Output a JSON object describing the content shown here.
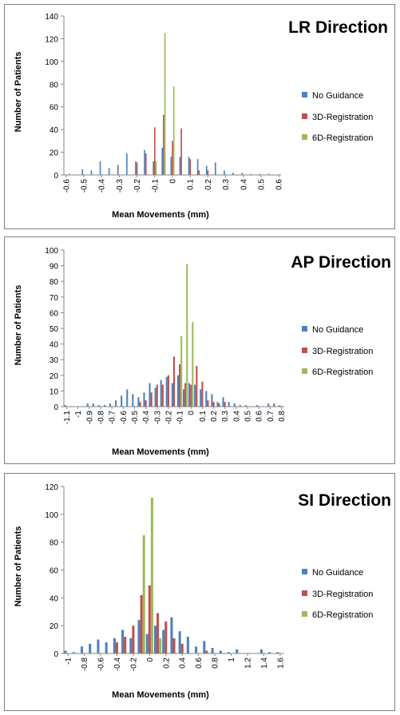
{
  "colors": {
    "no_guidance": "#4f81bd",
    "reg3d": "#c0504d",
    "reg6d": "#9bbb59",
    "axis": "#868686"
  },
  "chart_data": [
    {
      "type": "bar",
      "title": "LR Direction",
      "xlabel": "Mean Movements (mm)",
      "ylabel": "Number of Patients",
      "ylim": [
        0,
        140
      ],
      "yticks": [
        "0",
        "20",
        "40",
        "60",
        "80",
        "100",
        "120",
        "140"
      ],
      "legend_position": "right",
      "x_step": 0.025,
      "categories": [
        "-0.6",
        "-0.575",
        "-0.55",
        "-0.525",
        "-0.5",
        "-0.475",
        "-0.45",
        "-0.425",
        "-0.4",
        "-0.375",
        "-0.35",
        "-0.325",
        "-0.3",
        "-0.275",
        "-0.25",
        "-0.225",
        "-0.2",
        "-0.175",
        "-0.15",
        "-0.125",
        "-0.1",
        "-0.075",
        "-0.05",
        "-0.025",
        "0",
        "0.025",
        "0.05",
        "0.075",
        "0.1",
        "0.125",
        "0.15",
        "0.175",
        "0.2",
        "0.225",
        "0.25",
        "0.275",
        "0.3",
        "0.325",
        "0.35",
        "0.375",
        "0.4",
        "0.425",
        "0.45",
        "0.475",
        "0.5",
        "0.525",
        "0.55",
        "0.575",
        "0.6"
      ],
      "xtick_labels": [
        {
          "i": 0,
          "text": "-0.6"
        },
        {
          "i": 4,
          "text": "-0.5"
        },
        {
          "i": 8,
          "text": "-0.4"
        },
        {
          "i": 12,
          "text": "-0.3"
        },
        {
          "i": 16,
          "text": "-0.2"
        },
        {
          "i": 20,
          "text": "-0.1"
        },
        {
          "i": 24,
          "text": "0"
        },
        {
          "i": 28,
          "text": "0.1"
        },
        {
          "i": 32,
          "text": "0.2"
        },
        {
          "i": 36,
          "text": "0.3"
        },
        {
          "i": 40,
          "text": "0.4"
        },
        {
          "i": 44,
          "text": "0.5"
        },
        {
          "i": 48,
          "text": "0.6"
        }
      ],
      "series": [
        {
          "name": "No Guidance",
          "values": [
            0,
            1,
            0,
            0,
            5,
            0,
            4,
            0,
            12,
            0,
            6,
            0,
            9,
            0,
            19,
            0,
            12,
            0,
            22,
            0,
            12,
            0,
            24,
            0,
            16,
            0,
            16,
            0,
            16,
            0,
            14,
            0,
            8,
            0,
            11,
            0,
            4,
            0,
            2,
            0,
            2,
            0,
            1,
            0,
            1,
            0,
            1,
            0,
            0
          ]
        },
        {
          "name": "3D-Registration",
          "values": [
            0,
            0,
            0,
            0,
            0,
            0,
            0,
            0,
            0,
            0,
            0,
            0,
            0,
            0,
            0,
            0,
            11,
            0,
            19,
            0,
            42,
            0,
            53,
            0,
            30,
            0,
            41,
            0,
            14,
            0,
            4,
            0,
            4,
            0,
            0,
            0,
            0,
            0,
            0,
            0,
            0,
            0,
            0,
            0,
            0,
            0,
            0,
            0,
            0
          ]
        },
        {
          "name": "6D-Registration",
          "values": [
            0,
            0,
            0,
            0,
            0,
            0,
            0,
            0,
            0,
            0,
            0,
            0,
            0,
            0,
            0,
            0,
            0,
            0,
            0,
            0,
            12,
            0,
            125,
            0,
            78,
            0,
            0,
            0,
            0,
            0,
            0,
            0,
            0,
            0,
            0,
            0,
            0,
            0,
            0,
            0,
            0,
            0,
            0,
            0,
            0,
            0,
            0,
            0,
            0
          ]
        }
      ]
    },
    {
      "type": "bar",
      "title": "AP Direction",
      "xlabel": "Mean Movements (mm)",
      "ylabel": "Number of Patients",
      "ylim": [
        0,
        100
      ],
      "yticks": [
        "0",
        "10",
        "20",
        "30",
        "40",
        "50",
        "60",
        "70",
        "80",
        "90",
        "100"
      ],
      "legend_position": "right",
      "x_step": 0.05,
      "categories": [
        "-1.1",
        "-1.05",
        "-1",
        "-0.95",
        "-0.9",
        "-0.85",
        "-0.8",
        "-0.75",
        "-0.7",
        "-0.65",
        "-0.6",
        "-0.55",
        "-0.5",
        "-0.45",
        "-0.4",
        "-0.35",
        "-0.3",
        "-0.25",
        "-0.2",
        "-0.15",
        "-0.1",
        "-0.05",
        "0",
        "0.05",
        "0.1",
        "0.15",
        "0.2",
        "0.25",
        "0.3",
        "0.35",
        "0.4",
        "0.45",
        "0.5",
        "0.55",
        "0.6",
        "0.65",
        "0.7",
        "0.75",
        "0.8"
      ],
      "xtick_labels": [
        {
          "i": 0,
          "text": "-1.1"
        },
        {
          "i": 2,
          "text": "-1"
        },
        {
          "i": 4,
          "text": "-0.9"
        },
        {
          "i": 6,
          "text": "-0.8"
        },
        {
          "i": 8,
          "text": "-0.7"
        },
        {
          "i": 10,
          "text": "-0.6"
        },
        {
          "i": 12,
          "text": "-0.5"
        },
        {
          "i": 14,
          "text": "-0.4"
        },
        {
          "i": 16,
          "text": "-0.3"
        },
        {
          "i": 18,
          "text": "-0.2"
        },
        {
          "i": 20,
          "text": "-0.1"
        },
        {
          "i": 22,
          "text": "0"
        },
        {
          "i": 24,
          "text": "0.1"
        },
        {
          "i": 26,
          "text": "0.2"
        },
        {
          "i": 28,
          "text": "0.3"
        },
        {
          "i": 30,
          "text": "0.4"
        },
        {
          "i": 32,
          "text": "0.5"
        },
        {
          "i": 34,
          "text": "0.6"
        },
        {
          "i": 36,
          "text": "0.7"
        },
        {
          "i": 38,
          "text": "0.8"
        }
      ],
      "series": [
        {
          "name": "No Guidance",
          "values": [
            1,
            0,
            0,
            0,
            2,
            2,
            1,
            1,
            2,
            4,
            7,
            11,
            8,
            6,
            9,
            15,
            12,
            17,
            19,
            15,
            20,
            11,
            15,
            14,
            11,
            10,
            8,
            3,
            6,
            3,
            2,
            1,
            1,
            0,
            1,
            0,
            2,
            2,
            1
          ]
        },
        {
          "name": "3D-Registration",
          "values": [
            0,
            0,
            0,
            0,
            0,
            0,
            0,
            0,
            0,
            0,
            0,
            0,
            0,
            3,
            4,
            9,
            14,
            14,
            20,
            32,
            27,
            15,
            14,
            26,
            16,
            4,
            3,
            2,
            3,
            0,
            0,
            0,
            0,
            0,
            0,
            0,
            0,
            0,
            0
          ]
        },
        {
          "name": "6D-Registration",
          "values": [
            0,
            0,
            0,
            0,
            0,
            0,
            0,
            0,
            0,
            0,
            0,
            0,
            0,
            0,
            0,
            0,
            0,
            0,
            0,
            0,
            45,
            91,
            54,
            0,
            0,
            0,
            0,
            0,
            0,
            0,
            0,
            0,
            0,
            0,
            0,
            0,
            0,
            0,
            0
          ]
        }
      ]
    },
    {
      "type": "bar",
      "title": "SI Direction",
      "xlabel": "Mean Movements (mm)",
      "ylabel": "Number of Patients",
      "ylim": [
        0,
        120
      ],
      "yticks": [
        "0",
        "20",
        "40",
        "60",
        "80",
        "100",
        "120"
      ],
      "legend_position": "right",
      "x_step": 0.1,
      "categories": [
        "-1",
        "-0.9",
        "-0.8",
        "-0.7",
        "-0.6",
        "-0.5",
        "-0.4",
        "-0.3",
        "-0.2",
        "-0.1",
        "0",
        "0.1",
        "0.2",
        "0.3",
        "0.4",
        "0.5",
        "0.6",
        "0.7",
        "0.8",
        "0.9",
        "1",
        "1.1",
        "1.2",
        "1.3",
        "1.4",
        "1.5",
        "1.6"
      ],
      "xtick_labels": [
        {
          "i": 0,
          "text": "-1"
        },
        {
          "i": 2,
          "text": "-0.8"
        },
        {
          "i": 4,
          "text": "-0.6"
        },
        {
          "i": 6,
          "text": "-0.4"
        },
        {
          "i": 8,
          "text": "-0.2"
        },
        {
          "i": 10,
          "text": "0"
        },
        {
          "i": 12,
          "text": "0.2"
        },
        {
          "i": 14,
          "text": "0.4"
        },
        {
          "i": 16,
          "text": "0.6"
        },
        {
          "i": 18,
          "text": "0.8"
        },
        {
          "i": 20,
          "text": "1"
        },
        {
          "i": 22,
          "text": "1.2"
        },
        {
          "i": 24,
          "text": "1.4"
        },
        {
          "i": 26,
          "text": "1.6"
        }
      ],
      "series": [
        {
          "name": "No Guidance",
          "values": [
            2,
            1,
            5,
            7,
            10,
            8,
            11,
            17,
            11,
            24,
            14,
            20,
            17,
            26,
            16,
            12,
            5,
            9,
            4,
            2,
            1,
            3,
            0,
            0,
            3,
            1,
            1
          ]
        },
        {
          "name": "3D-Registration",
          "values": [
            0,
            0,
            0,
            0,
            0,
            0,
            8,
            12,
            20,
            42,
            49,
            29,
            23,
            11,
            7,
            0,
            0,
            2,
            0,
            0,
            0,
            0,
            0,
            0,
            0,
            0,
            0
          ]
        },
        {
          "name": "6D-Registration",
          "values": [
            0,
            0,
            0,
            0,
            0,
            0,
            0,
            0,
            0,
            85,
            112,
            11,
            0,
            0,
            0,
            0,
            0,
            0,
            0,
            0,
            0,
            0,
            0,
            0,
            0,
            0,
            0
          ]
        }
      ]
    }
  ]
}
